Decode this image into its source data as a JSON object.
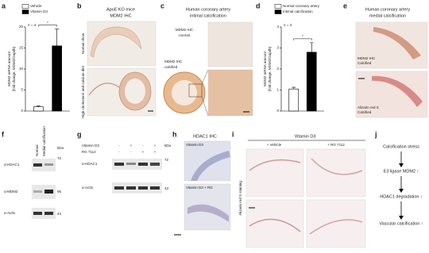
{
  "chart_data": [
    {
      "type": "bar",
      "y_label": [
        "MDM2 mRNA amount",
        "(fold change, MDM2/Gapdh)"
      ],
      "annotations": [
        "n = 4",
        "*"
      ],
      "ylim": [
        0,
        20
      ],
      "yticks": [
        0,
        5,
        10,
        15,
        20
      ],
      "series": [
        {
          "name": "Vehicle",
          "color": "#ffffff",
          "values": [
            1
          ],
          "errors": [
            0.2
          ]
        },
        {
          "name": "Vitamin D3",
          "color": "#000000",
          "values": [
            15.5
          ],
          "errors": [
            4
          ]
        }
      ]
    },
    {
      "type": "bar",
      "y_label": [
        "MDM2 mRNA amount",
        "(fold change, MDM2/Gapdh)"
      ],
      "annotations": [
        "n = 4",
        "*"
      ],
      "ylim": [
        0,
        4
      ],
      "yticks": [
        0,
        1,
        2,
        3,
        4
      ],
      "series": [
        {
          "name": "Normal coronary artery",
          "color": "#ffffff",
          "values": [
            1.05
          ],
          "errors": [
            0.08
          ]
        },
        {
          "name": "Intimal calcification",
          "color": "#000000",
          "values": [
            2.8
          ],
          "errors": [
            0.45
          ]
        }
      ]
    }
  ],
  "letters": [
    "a",
    "b",
    "c",
    "d",
    "e",
    "f",
    "g",
    "h",
    "i",
    "j"
  ],
  "b": {
    "title": [
      "ApoE KO mice",
      "MDM2 IHC"
    ],
    "rows": [
      "Normal chow",
      "High cholesterol and calcium diet"
    ]
  },
  "c": {
    "title": [
      "Human coronary artery",
      "intimal calcification"
    ],
    "normal": [
      "MDM2 IHC",
      "normal"
    ],
    "calcified": [
      "MDM2 IHC",
      "calcified"
    ]
  },
  "e": {
    "title": [
      "Human coronary artery",
      "medial calcification"
    ],
    "top": [
      "MDM2 IHC",
      "Calcified"
    ],
    "bottom": [
      "Alizarin red S",
      "Calcified"
    ]
  },
  "f": {
    "columns": [
      "Normal",
      "Medial calcification"
    ],
    "rows": [
      "α-HDAC1",
      "α-MDM2",
      "α-Actin"
    ],
    "unit": "kDa",
    "markers": [
      "72",
      "95",
      "43"
    ]
  },
  "g": {
    "conditions": [
      {
        "name": "Vitamin D3",
        "signs": [
          "-",
          "+",
          "-",
          "+"
        ]
      },
      {
        "name": "RG 7112",
        "signs": [
          "-",
          "-",
          "+",
          "+"
        ]
      }
    ],
    "rows": [
      "α-HDAC1",
      "α-Actin"
    ],
    "unit": "kDa",
    "markers": [
      "72",
      "43"
    ]
  },
  "h": {
    "title": "HDAC1 IHC",
    "panels": [
      "Vitamin D3",
      "Vitamin D3 + RG"
    ]
  },
  "i": {
    "title": "Vitamin D3",
    "columns": [
      "+ Vehicle",
      "+ RG 7112"
    ],
    "side": "Alizarin red S staining"
  },
  "j": {
    "steps": [
      "Calcification stress",
      "E3 ligase MDM2 ↑",
      "HDAC1 degradation ↑",
      "Vascular calcification ↑"
    ]
  }
}
